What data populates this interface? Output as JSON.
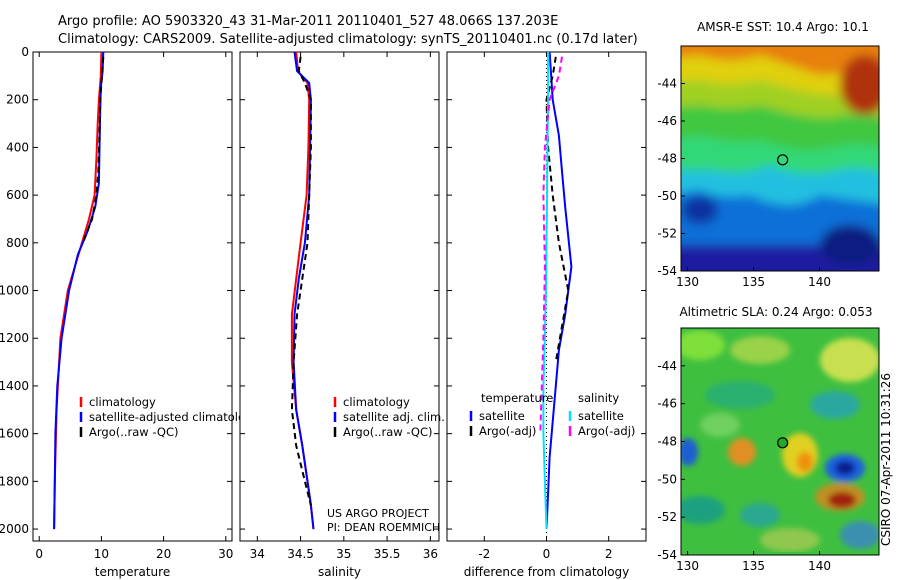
{
  "header": {
    "line1": "Argo profile: AO 5903320_43 31-Mar-2011 20110401_527 48.066S 137.203E",
    "line2": "Climatology: CARS2009. Satellite-adjusted climatology: synTS_20110401.nc (0.17d later)"
  },
  "credits": {
    "project": "US ARGO PROJECT",
    "pi": "PI: DEAN ROEMMICH",
    "stamp": "CSIRO 07-Apr-2011 10:31:26"
  },
  "colors": {
    "climatology": "#ff0000",
    "satellite": "#0000ff",
    "argo": "#000000",
    "sat_sal": "#00e0ff",
    "argo_sal": "#ff00ff",
    "marker_fill": "#22aa22"
  },
  "chart_data": [
    {
      "type": "line",
      "title": "",
      "xlabel": "temperature",
      "ylabel": "",
      "xlim": [
        -1,
        31
      ],
      "ylim": [
        2050,
        0
      ],
      "xticks": [
        0,
        10,
        20,
        30
      ],
      "yticks": [
        0,
        200,
        400,
        600,
        800,
        1000,
        1200,
        1400,
        1600,
        1800,
        2000
      ],
      "legend": [
        "climatology",
        "satellite-adjusted climatology",
        "Argo(..raw -QC)"
      ],
      "series": [
        {
          "name": "climatology",
          "color_key": "climatology",
          "dash": "",
          "x": [
            10.0,
            9.9,
            9.6,
            9.4,
            9.2,
            8.9,
            8.0,
            6.3,
            4.6,
            3.4,
            2.8,
            2.5,
            2.4
          ],
          "y": [
            0,
            100,
            200,
            300,
            450,
            600,
            700,
            850,
            1000,
            1200,
            1500,
            1800,
            2000
          ]
        },
        {
          "name": "satellite-adjusted climatology",
          "color_key": "satellite",
          "dash": "",
          "x": [
            10.3,
            10.2,
            9.9,
            9.8,
            9.7,
            9.6,
            9.0,
            7.8,
            6.2,
            4.8,
            3.6,
            2.9,
            2.6,
            2.5,
            2.4
          ],
          "y": [
            0,
            80,
            150,
            250,
            400,
            550,
            650,
            750,
            850,
            1000,
            1200,
            1400,
            1600,
            1800,
            2000
          ]
        },
        {
          "name": "Argo(..raw -QC)",
          "color_key": "argo",
          "dash": "6,4",
          "x": [
            10.3,
            10.1,
            9.8,
            9.7,
            9.5,
            9.2,
            8.5,
            7.0
          ],
          "y": [
            20,
            100,
            200,
            350,
            500,
            600,
            700,
            800
          ]
        }
      ]
    },
    {
      "type": "line",
      "title": "",
      "xlabel": "salinity",
      "ylabel": "",
      "xlim": [
        33.8,
        36.1
      ],
      "ylim": [
        2050,
        0
      ],
      "xticks": [
        34,
        34.5,
        35,
        35.5,
        36
      ],
      "yticks": [
        0,
        200,
        400,
        600,
        800,
        1000,
        1200,
        1400,
        1600,
        1800,
        2000
      ],
      "legend": [
        "climatology",
        "satellite adj. clim.",
        "Argo(..raw -QC)"
      ],
      "series": [
        {
          "name": "climatology",
          "color_key": "climatology",
          "dash": "",
          "x": [
            34.45,
            34.47,
            34.58,
            34.6,
            34.59,
            34.57,
            34.5,
            34.45,
            34.4,
            34.4,
            34.45,
            34.52,
            34.58,
            34.62,
            34.65
          ],
          "y": [
            0,
            80,
            130,
            200,
            400,
            600,
            800,
            950,
            1100,
            1300,
            1500,
            1650,
            1800,
            1900,
            2000
          ]
        },
        {
          "name": "satellite adj. clim.",
          "color_key": "satellite",
          "dash": "",
          "x": [
            34.43,
            34.46,
            34.6,
            34.62,
            34.61,
            34.6,
            34.55,
            34.48,
            34.43,
            34.42,
            34.45,
            34.52,
            34.58,
            34.62,
            34.65
          ],
          "y": [
            0,
            80,
            130,
            200,
            400,
            600,
            800,
            950,
            1100,
            1300,
            1500,
            1650,
            1800,
            1900,
            2000
          ]
        },
        {
          "name": "Argo(..raw -QC)",
          "color_key": "argo",
          "dash": "6,4",
          "x": [
            34.5,
            34.48,
            34.55,
            34.62,
            34.62,
            34.6,
            34.58,
            34.52,
            34.46,
            34.42,
            34.4,
            34.45,
            34.55,
            34.62
          ],
          "y": [
            20,
            80,
            130,
            200,
            400,
            600,
            800,
            950,
            1100,
            1300,
            1500,
            1650,
            1800,
            1900
          ]
        }
      ]
    },
    {
      "type": "line",
      "title": "",
      "xlabel": "difference from climatology",
      "ylabel": "",
      "xlim": [
        -3.2,
        3.2
      ],
      "ylim": [
        2050,
        0
      ],
      "xticks": [
        -2,
        0,
        2
      ],
      "yticks": [
        0,
        200,
        400,
        600,
        800,
        1000,
        1200,
        1400,
        1600,
        1800,
        2000
      ],
      "legend_groups": [
        {
          "heading": "temperature",
          "items": [
            "satellite",
            "Argo(-adj)"
          ]
        },
        {
          "heading": "salinity",
          "items": [
            "satellite",
            "Argo(-adj)"
          ]
        }
      ],
      "series": [
        {
          "name": "temperature satellite",
          "color_key": "satellite",
          "dash": "",
          "x": [
            0.1,
            0.15,
            0.2,
            0.4,
            0.5,
            0.6,
            0.8,
            0.6,
            0.4,
            0.3,
            0.2,
            0.1,
            0.05,
            0.0
          ],
          "y": [
            0,
            100,
            200,
            350,
            500,
            650,
            900,
            1100,
            1250,
            1400,
            1550,
            1700,
            1850,
            2000
          ]
        },
        {
          "name": "temperature Argo(-adj)",
          "color_key": "argo",
          "dash": "6,4",
          "x": [
            0.3,
            0.2,
            0.0,
            0.05,
            0.2,
            0.4,
            0.7,
            0.5,
            0.3
          ],
          "y": [
            20,
            100,
            200,
            400,
            600,
            800,
            1000,
            1150,
            1300
          ]
        },
        {
          "name": "salinity satellite",
          "color_key": "sat_sal",
          "dash": "",
          "x": [
            0.05,
            0.05,
            0.03,
            0.02,
            0.0,
            -0.02,
            -0.05,
            -0.1,
            -0.1,
            -0.05,
            0.0
          ],
          "y": [
            0,
            200,
            400,
            600,
            800,
            1000,
            1200,
            1400,
            1600,
            1800,
            2000
          ]
        },
        {
          "name": "salinity Argo(-adj)",
          "color_key": "argo_sal",
          "dash": "6,4",
          "x": [
            0.5,
            0.4,
            0.1,
            -0.05,
            -0.1,
            -0.05,
            -0.1,
            -0.15,
            -0.2
          ],
          "y": [
            20,
            100,
            200,
            400,
            600,
            900,
            1200,
            1400,
            1600
          ]
        }
      ]
    },
    {
      "type": "heatmap",
      "title": "AMSR-E SST: 10.4 Argo: 10.1",
      "xlim": [
        129.5,
        144.5
      ],
      "ylim": [
        -54,
        -42
      ],
      "xticks": [
        130,
        135,
        140
      ],
      "yticks": [
        -44,
        -46,
        -48,
        -50,
        -52,
        -54
      ],
      "marker": {
        "lon": 137.2,
        "lat": -48.07
      }
    },
    {
      "type": "heatmap",
      "title": "Altimetric SLA: 0.24 Argo: 0.053",
      "xlim": [
        129.5,
        144.5
      ],
      "ylim": [
        -54,
        -42
      ],
      "xticks": [
        130,
        135,
        140
      ],
      "yticks": [
        -44,
        -46,
        -48,
        -50,
        -52,
        -54
      ],
      "marker": {
        "lon": 137.2,
        "lat": -48.07
      }
    }
  ]
}
